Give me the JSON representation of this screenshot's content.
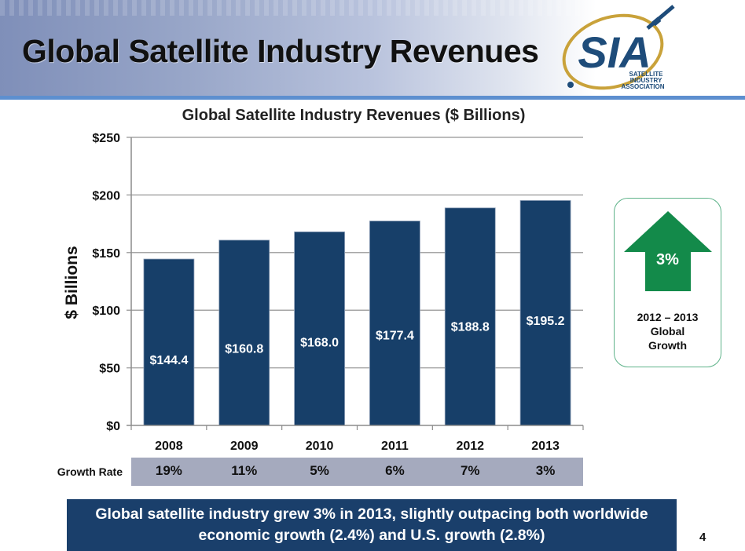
{
  "slide": {
    "title": "Global Satellite Industry Revenues",
    "logo": {
      "name": "SIA",
      "subtitle_lines": [
        "SATELLITE",
        "INDUSTRY",
        "ASSOCIATION"
      ]
    },
    "page_number": "4"
  },
  "callout": {
    "icon": "up-arrow-icon",
    "value": "3%",
    "label_lines": [
      "2012 – 2013",
      "Global",
      "Growth"
    ],
    "color": "#138a4a"
  },
  "growth_row": {
    "label": "Growth Rate",
    "values": [
      "19%",
      "11%",
      "5%",
      "6%",
      "7%",
      "3%"
    ]
  },
  "footer": {
    "text": "Global satellite industry grew 3% in 2013, slightly outpacing both worldwide economic growth (2.4%) and U.S. growth (2.8%)"
  },
  "chart_data": {
    "type": "bar",
    "title": "Global Satellite Industry Revenues ($ Billions)",
    "xlabel": "",
    "ylabel": "$ Billions",
    "categories": [
      "2008",
      "2009",
      "2010",
      "2011",
      "2012",
      "2013"
    ],
    "values": [
      144.4,
      160.8,
      168.0,
      177.4,
      188.8,
      195.2
    ],
    "data_labels": [
      "$144.4",
      "$160.8",
      "$168.0",
      "$177.4",
      "$188.8",
      "$195.2"
    ],
    "ylim": [
      0,
      250
    ],
    "yticks": [
      0,
      50,
      100,
      150,
      200,
      250
    ],
    "ytick_labels": [
      "$0",
      "$50",
      "$100",
      "$150",
      "$200",
      "$250"
    ],
    "grid": true,
    "legend": "none",
    "bar_color": "#173f69"
  }
}
